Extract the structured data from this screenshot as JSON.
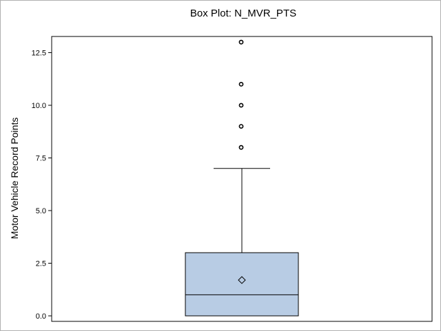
{
  "chart_data": {
    "type": "box",
    "title": "Box Plot: N_MVR_PTS",
    "ylabel": "Motor Vehicle Record Points",
    "xlabel": "",
    "ylim": [
      0,
      13
    ],
    "yticks": [
      {
        "value": 0,
        "label": "0.0"
      },
      {
        "value": 2.5,
        "label": "2.5"
      },
      {
        "value": 5,
        "label": "5.0"
      },
      {
        "value": 7.5,
        "label": "7.5"
      },
      {
        "value": 10,
        "label": "10.0"
      },
      {
        "value": 12.5,
        "label": "12.5"
      }
    ],
    "box": {
      "min": 0,
      "q1": 0,
      "median": 1,
      "q3": 3,
      "whisker_high": 7,
      "mean": 1.7
    },
    "outliers": [
      8,
      9,
      10,
      11,
      13
    ],
    "box_fill": "#b8cce4",
    "box_stroke": "#000000",
    "grid": false
  }
}
